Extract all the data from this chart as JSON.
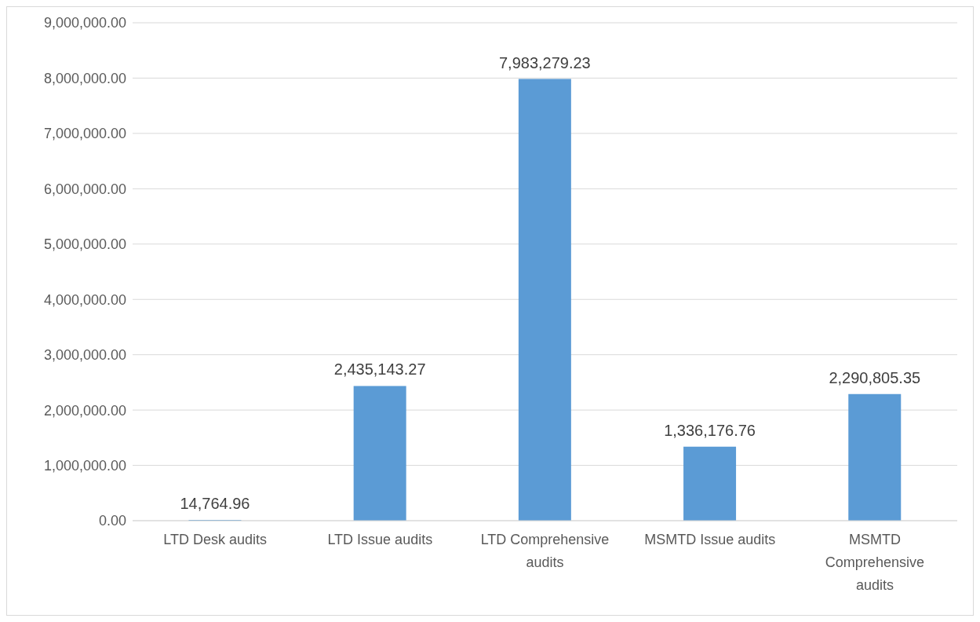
{
  "chart_data": {
    "type": "bar",
    "categories": [
      "LTD Desk audits",
      "LTD Issue audits",
      "LTD Comprehensive audits",
      "MSMTD Issue audits",
      "MSMTD Comprehensive audits"
    ],
    "values": [
      14764.96,
      2435143.27,
      7983279.23,
      1336176.76,
      2290805.35
    ],
    "value_labels": [
      "14,764.96",
      "2,435,143.27",
      "7,983,279.23",
      "1,336,176.76",
      "2,290,805.35"
    ],
    "color": "#5b9bd5",
    "ylim": [
      0,
      9000000
    ],
    "yticks": [
      {
        "value": 0,
        "label": "0.00"
      },
      {
        "value": 1000000,
        "label": "1,000,000.00"
      },
      {
        "value": 2000000,
        "label": "2,000,000.00"
      },
      {
        "value": 3000000,
        "label": "3,000,000.00"
      },
      {
        "value": 4000000,
        "label": "4,000,000.00"
      },
      {
        "value": 5000000,
        "label": "5,000,000.00"
      },
      {
        "value": 6000000,
        "label": "6,000,000.00"
      },
      {
        "value": 7000000,
        "label": "7,000,000.00"
      },
      {
        "value": 8000000,
        "label": "8,000,000.00"
      },
      {
        "value": 9000000,
        "label": "9,000,000.00"
      }
    ],
    "grid": "y",
    "legend": false
  }
}
